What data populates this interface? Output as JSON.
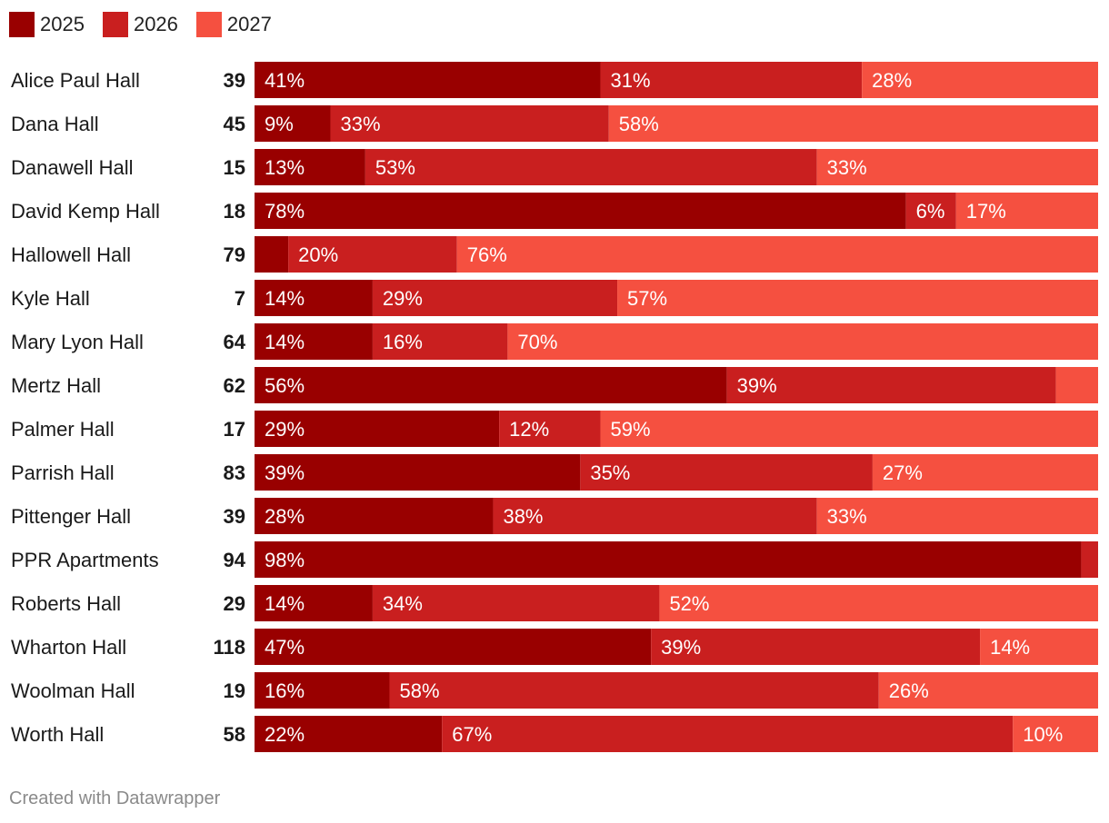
{
  "chart_data": {
    "type": "bar",
    "orientation": "horizontal",
    "stacked": true,
    "normalized": true,
    "series": [
      {
        "name": "2025",
        "color": "#990000"
      },
      {
        "name": "2026",
        "color": "#c91f1f"
      },
      {
        "name": "2027",
        "color": "#f55040"
      }
    ],
    "rows": [
      {
        "label": "Alice Paul Hall",
        "total": "39",
        "values": [
          41,
          31,
          28
        ],
        "labels": [
          "41%",
          "31%",
          "28%"
        ]
      },
      {
        "label": "Dana Hall",
        "total": "45",
        "values": [
          9,
          33,
          58
        ],
        "labels": [
          "9%",
          "33%",
          "58%"
        ]
      },
      {
        "label": "Danawell Hall",
        "total": "15",
        "values": [
          13,
          53,
          33
        ],
        "labels": [
          "13%",
          "53%",
          "33%"
        ]
      },
      {
        "label": "David Kemp Hall",
        "total": "18",
        "values": [
          78,
          6,
          17
        ],
        "labels": [
          "78%",
          "6%",
          "17%"
        ]
      },
      {
        "label": "Hallowell Hall",
        "total": "79",
        "values": [
          4,
          20,
          76
        ],
        "labels": [
          "",
          "20%",
          "76%"
        ]
      },
      {
        "label": "Kyle Hall",
        "total": "7",
        "values": [
          14,
          29,
          57
        ],
        "labels": [
          "14%",
          "29%",
          "57%"
        ]
      },
      {
        "label": "Mary Lyon Hall",
        "total": "64",
        "values": [
          14,
          16,
          70
        ],
        "labels": [
          "14%",
          "16%",
          "70%"
        ]
      },
      {
        "label": "Mertz Hall",
        "total": "62",
        "values": [
          56,
          39,
          5
        ],
        "labels": [
          "56%",
          "39%",
          ""
        ]
      },
      {
        "label": "Palmer Hall",
        "total": "17",
        "values": [
          29,
          12,
          59
        ],
        "labels": [
          "29%",
          "12%",
          "59%"
        ]
      },
      {
        "label": "Parrish Hall",
        "total": "83",
        "values": [
          39,
          35,
          27
        ],
        "labels": [
          "39%",
          "35%",
          "27%"
        ]
      },
      {
        "label": "Pittenger Hall",
        "total": "39",
        "values": [
          28,
          38,
          33
        ],
        "labels": [
          "28%",
          "38%",
          "33%"
        ]
      },
      {
        "label": "PPR Apartments",
        "total": "94",
        "values": [
          98,
          2,
          0
        ],
        "labels": [
          "98%",
          "",
          ""
        ]
      },
      {
        "label": "Roberts Hall",
        "total": "29",
        "values": [
          14,
          34,
          52
        ],
        "labels": [
          "14%",
          "34%",
          "52%"
        ]
      },
      {
        "label": "Wharton Hall",
        "total": "118",
        "values": [
          47,
          39,
          14
        ],
        "labels": [
          "47%",
          "39%",
          "14%"
        ]
      },
      {
        "label": "Woolman Hall",
        "total": "19",
        "values": [
          16,
          58,
          26
        ],
        "labels": [
          "16%",
          "58%",
          "26%"
        ]
      },
      {
        "label": "Worth Hall",
        "total": "58",
        "values": [
          22,
          67,
          10
        ],
        "labels": [
          "22%",
          "67%",
          "10%"
        ]
      }
    ]
  },
  "footer": {
    "credit": "Created with Datawrapper"
  }
}
